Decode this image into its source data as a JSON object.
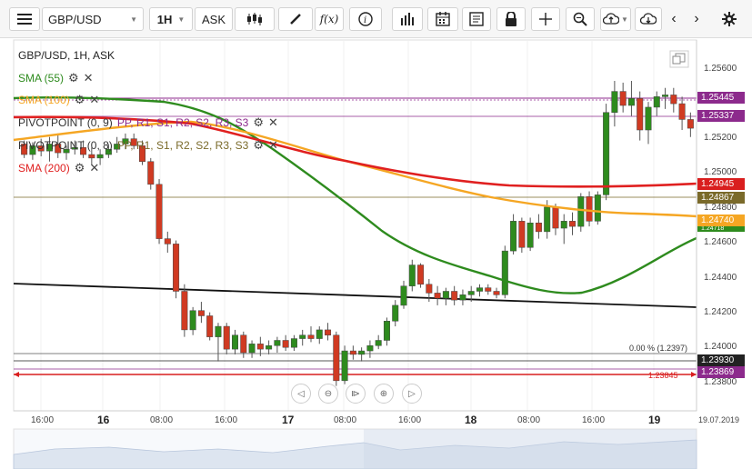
{
  "toolbar": {
    "symbol": "GBP/USD",
    "timeframe": "1H",
    "price_type": "ASK"
  },
  "chart_info": {
    "title": "GBP/USD, 1H, ASK"
  },
  "indicators": [
    {
      "label": "SMA (55)",
      "color": "#2e8b1e"
    },
    {
      "label": "SMA (100)",
      "color": "#f5a623"
    },
    {
      "label": "PIVOTPOINT (0, 9)",
      "levels": "PP, R1, S1, R2, S2, R3, S3"
    },
    {
      "label": "PIVOTPOINT (0, 8)",
      "levels": "PP, R1, S1, R2, S2, R3, S3"
    },
    {
      "label": "SMA (200)",
      "color": "#e02020"
    }
  ],
  "price_axis": {
    "ticks": [
      "1.25600",
      "1.25200",
      "1.25000",
      "1.24800",
      "1.24600",
      "1.24400",
      "1.24200",
      "1.24000",
      "1.23800"
    ]
  },
  "price_tags": [
    {
      "value": "1.25445",
      "color": "#8c2a8c"
    },
    {
      "value": "1.25337",
      "color": "#8c2a8c"
    },
    {
      "value": "1.24945",
      "color": "#d91e1e"
    },
    {
      "value": "1.24867",
      "color": "#7a6a2a"
    },
    {
      "value": "1.24740",
      "color": "#f5a623"
    },
    {
      "value": "1.24718",
      "color": "#2e8b1e"
    },
    {
      "value": "1.23930",
      "color": "#222222"
    },
    {
      "value": "1.23869",
      "color": "#8c2a8c"
    }
  ],
  "annotations": {
    "fib_label": "0.00 % (1.2397)",
    "red_line_label": "1.23845"
  },
  "time_axis": {
    "labels": [
      "16:00",
      "16",
      "08:00",
      "16:00",
      "17",
      "08:00",
      "16:00",
      "18",
      "08:00",
      "16:00",
      "19",
      "19.07.2019"
    ]
  },
  "chart_data": {
    "type": "candlestick",
    "ylim": [
      1.2375,
      1.2575
    ],
    "candles": [
      [
        1.2522,
        1.2524,
        1.2514,
        1.2516
      ],
      [
        1.2516,
        1.2523,
        1.2513,
        1.2521
      ],
      [
        1.2521,
        1.2525,
        1.2515,
        1.2518
      ],
      [
        1.2518,
        1.2526,
        1.2512,
        1.2522
      ],
      [
        1.2522,
        1.2528,
        1.2514,
        1.2517
      ],
      [
        1.2517,
        1.2521,
        1.2513,
        1.2519
      ],
      [
        1.2519,
        1.2524,
        1.2516,
        1.252
      ],
      [
        1.252,
        1.2524,
        1.2514,
        1.2516
      ],
      [
        1.2516,
        1.252,
        1.251,
        1.2514
      ],
      [
        1.2514,
        1.2519,
        1.251,
        1.2516
      ],
      [
        1.2516,
        1.2522,
        1.2514,
        1.2519
      ],
      [
        1.2519,
        1.2526,
        1.2517,
        1.2522
      ],
      [
        1.2522,
        1.2528,
        1.2519,
        1.2525
      ],
      [
        1.2525,
        1.2528,
        1.2519,
        1.2521
      ],
      [
        1.2521,
        1.2524,
        1.251,
        1.2512
      ],
      [
        1.2512,
        1.2514,
        1.2496,
        1.2499
      ],
      [
        1.2499,
        1.2502,
        1.2465,
        1.2468
      ],
      [
        1.2468,
        1.2472,
        1.246,
        1.2465
      ],
      [
        1.2465,
        1.2467,
        1.2434,
        1.2438
      ],
      [
        1.2438,
        1.2442,
        1.2412,
        1.2416
      ],
      [
        1.2416,
        1.2429,
        1.2413,
        1.2427
      ],
      [
        1.2427,
        1.2432,
        1.242,
        1.2424
      ],
      [
        1.2424,
        1.2426,
        1.241,
        1.2412
      ],
      [
        1.2412,
        1.242,
        1.2398,
        1.2418
      ],
      [
        1.2418,
        1.242,
        1.2402,
        1.2405
      ],
      [
        1.2405,
        1.2416,
        1.2402,
        1.2413
      ],
      [
        1.2413,
        1.2415,
        1.24,
        1.2403
      ],
      [
        1.2403,
        1.241,
        1.24,
        1.2408
      ],
      [
        1.2408,
        1.2412,
        1.2401,
        1.2405
      ],
      [
        1.2405,
        1.241,
        1.2402,
        1.2407
      ],
      [
        1.2407,
        1.2412,
        1.2403,
        1.241
      ],
      [
        1.241,
        1.2413,
        1.2404,
        1.2406
      ],
      [
        1.2406,
        1.2413,
        1.2404,
        1.2411
      ],
      [
        1.2411,
        1.2416,
        1.2407,
        1.2413
      ],
      [
        1.2413,
        1.2418,
        1.2409,
        1.2411
      ],
      [
        1.2411,
        1.2418,
        1.2408,
        1.2416
      ],
      [
        1.2416,
        1.242,
        1.241,
        1.2413
      ],
      [
        1.2413,
        1.2415,
        1.2384,
        1.2387
      ],
      [
        1.2387,
        1.2407,
        1.2385,
        1.2404
      ],
      [
        1.2404,
        1.2407,
        1.2399,
        1.2402
      ],
      [
        1.2402,
        1.2406,
        1.2398,
        1.2404
      ],
      [
        1.2404,
        1.241,
        1.24,
        1.2407
      ],
      [
        1.2407,
        1.2413,
        1.2405,
        1.241
      ],
      [
        1.241,
        1.2423,
        1.2407,
        1.2421
      ],
      [
        1.2421,
        1.2433,
        1.2418,
        1.243
      ],
      [
        1.243,
        1.2444,
        1.2428,
        1.2441
      ],
      [
        1.2441,
        1.2456,
        1.2438,
        1.2453
      ],
      [
        1.2453,
        1.2454,
        1.244,
        1.2442
      ],
      [
        1.2442,
        1.2445,
        1.2432,
        1.2437
      ],
      [
        1.2437,
        1.2441,
        1.243,
        1.2434
      ],
      [
        1.2434,
        1.244,
        1.243,
        1.2438
      ],
      [
        1.2438,
        1.2441,
        1.243,
        1.2433
      ],
      [
        1.2433,
        1.2439,
        1.243,
        1.2436
      ],
      [
        1.2436,
        1.2441,
        1.2432,
        1.2438
      ],
      [
        1.2438,
        1.2442,
        1.2435,
        1.244
      ],
      [
        1.244,
        1.2442,
        1.2436,
        1.2438
      ],
      [
        1.2438,
        1.244,
        1.2434,
        1.2436
      ],
      [
        1.2436,
        1.2464,
        1.2434,
        1.2461
      ],
      [
        1.2461,
        1.2482,
        1.2459,
        1.2478
      ],
      [
        1.2478,
        1.248,
        1.246,
        1.2463
      ],
      [
        1.2463,
        1.248,
        1.2461,
        1.2477
      ],
      [
        1.2477,
        1.2482,
        1.2468,
        1.2472
      ],
      [
        1.2472,
        1.249,
        1.2468,
        1.2486
      ],
      [
        1.2486,
        1.2488,
        1.247,
        1.2474
      ],
      [
        1.2474,
        1.2482,
        1.2465,
        1.2478
      ],
      [
        1.2478,
        1.2483,
        1.247,
        1.2475
      ],
      [
        1.2475,
        1.2494,
        1.2472,
        1.2492
      ],
      [
        1.2492,
        1.2495,
        1.2475,
        1.2478
      ],
      [
        1.2478,
        1.2495,
        1.2476,
        1.2493
      ],
      [
        1.2493,
        1.2545,
        1.249,
        1.254
      ],
      [
        1.254,
        1.2558,
        1.2532,
        1.2552
      ],
      [
        1.2552,
        1.2557,
        1.254,
        1.2544
      ],
      [
        1.2544,
        1.2558,
        1.2538,
        1.2548
      ],
      [
        1.2548,
        1.2552,
        1.2524,
        1.253
      ],
      [
        1.253,
        1.2546,
        1.2522,
        1.2543
      ],
      [
        1.2543,
        1.2552,
        1.2538,
        1.2549
      ],
      [
        1.2549,
        1.2554,
        1.2542,
        1.255
      ],
      [
        1.255,
        1.2554,
        1.254,
        1.2545
      ],
      [
        1.2545,
        1.2549,
        1.253,
        1.2536
      ],
      [
        1.2536,
        1.254,
        1.2526,
        1.2531
      ]
    ],
    "colors": {
      "up": "#2e8b1e",
      "down": "#d03a22"
    }
  }
}
